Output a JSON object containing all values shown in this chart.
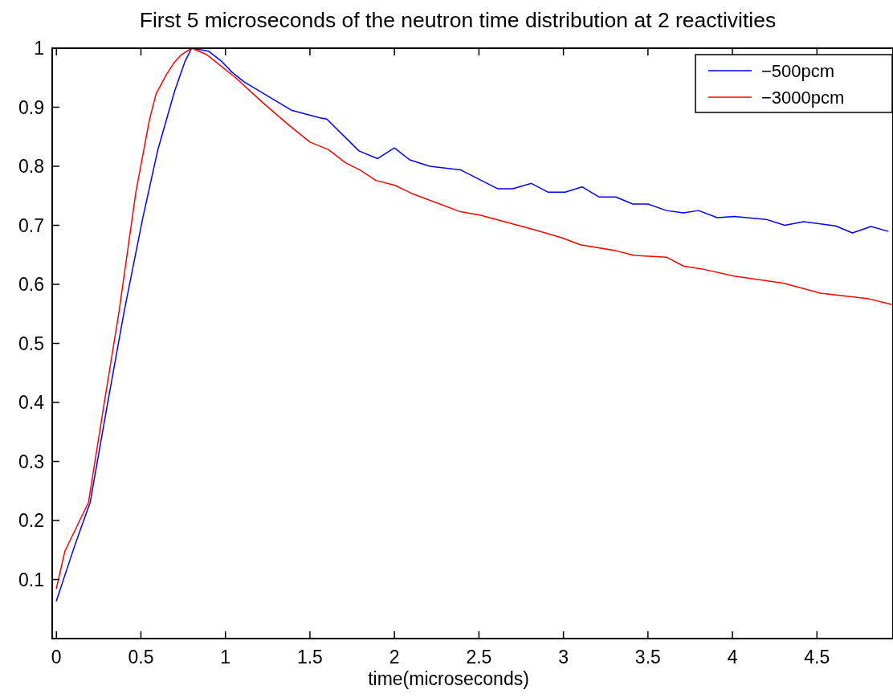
{
  "chart_data": {
    "type": "line",
    "title": "First 5 microseconds of the neutron time distribution at 2 reactivities",
    "xlabel": "time(microseconds)",
    "xlim": [
      -0.025,
      4.95
    ],
    "ylim": [
      0,
      1
    ],
    "xticks": [
      0,
      0.5,
      1,
      1.5,
      2,
      2.5,
      3,
      3.5,
      4,
      4.5
    ],
    "yticks": [
      0.1,
      0.2,
      0.3,
      0.4,
      0.5,
      0.6,
      0.7,
      0.8,
      0.9,
      1
    ],
    "grid": false,
    "legend": "top right",
    "marker": "none",
    "line_style": "solid",
    "series": [
      {
        "name": "−500pcm",
        "color": "#0000ff",
        "x": [
          0,
          0.11,
          0.2,
          0.3,
          0.4,
          0.51,
          0.6,
          0.7,
          0.76,
          0.8,
          0.9,
          0.98,
          1.04,
          1.11,
          1.39,
          1.56,
          1.6,
          1.79,
          1.9,
          2.0,
          2.09,
          2.21,
          2.39,
          2.61,
          2.7,
          2.81,
          2.91,
          3.01,
          3.11,
          3.21,
          3.31,
          3.41,
          3.5,
          3.61,
          3.71,
          3.8,
          3.91,
          4.01,
          4.2,
          4.31,
          4.42,
          4.61,
          4.71,
          4.82,
          4.92
        ],
        "values": [
          0.064,
          0.159,
          0.231,
          0.394,
          0.553,
          0.711,
          0.828,
          0.928,
          0.977,
          1.0,
          0.995,
          0.977,
          0.959,
          0.943,
          0.895,
          0.882,
          0.88,
          0.826,
          0.813,
          0.831,
          0.811,
          0.8,
          0.794,
          0.762,
          0.762,
          0.771,
          0.756,
          0.756,
          0.765,
          0.748,
          0.748,
          0.736,
          0.736,
          0.725,
          0.721,
          0.725,
          0.713,
          0.715,
          0.71,
          0.7,
          0.706,
          0.699,
          0.687,
          0.698,
          0.69
        ]
      },
      {
        "name": "−3000pcm",
        "color": "#ff0000",
        "x": [
          0,
          0.05,
          0.19,
          0.27,
          0.37,
          0.47,
          0.55,
          0.59,
          0.65,
          0.7,
          0.74,
          0.8,
          0.89,
          1.06,
          1.22,
          1.37,
          1.5,
          1.61,
          1.71,
          1.8,
          1.89,
          2.0,
          2.11,
          2.39,
          2.51,
          2.81,
          2.99,
          3.1,
          3.31,
          3.42,
          3.61,
          3.71,
          3.82,
          4.01,
          4.3,
          4.52,
          4.8,
          4.94
        ],
        "values": [
          0.085,
          0.148,
          0.231,
          0.376,
          0.553,
          0.756,
          0.878,
          0.923,
          0.955,
          0.977,
          0.989,
          1.0,
          0.989,
          0.95,
          0.908,
          0.871,
          0.841,
          0.828,
          0.806,
          0.793,
          0.776,
          0.768,
          0.753,
          0.723,
          0.717,
          0.694,
          0.679,
          0.667,
          0.657,
          0.649,
          0.646,
          0.631,
          0.626,
          0.614,
          0.602,
          0.585,
          0.576,
          0.566
        ]
      }
    ]
  }
}
